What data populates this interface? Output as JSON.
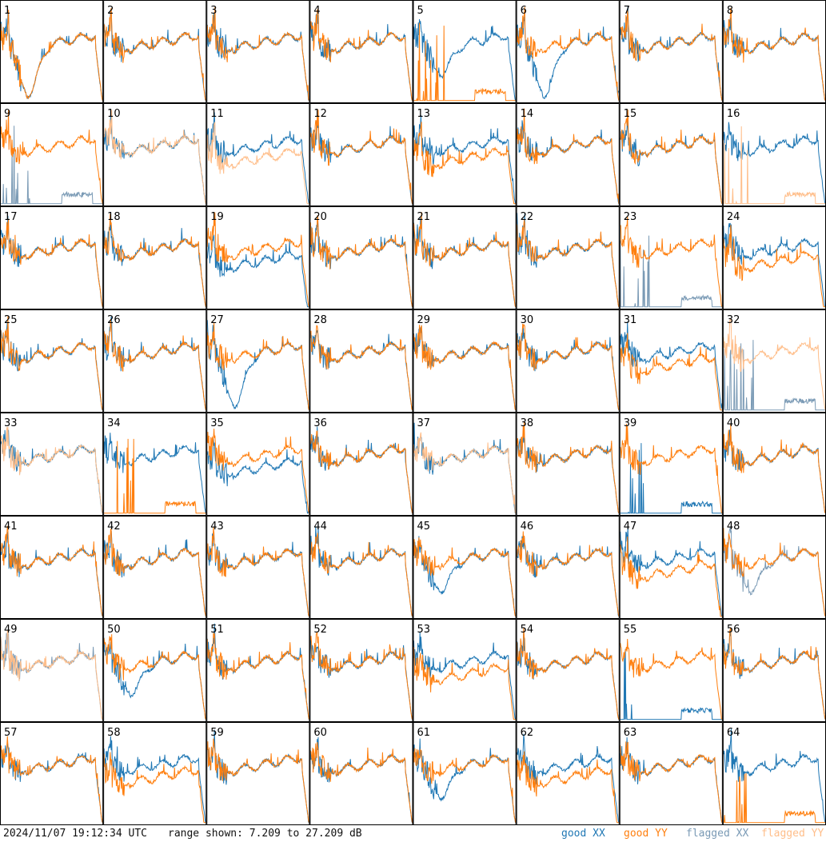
{
  "footer": {
    "timestamp": "2024/11/07 19:12:34 UTC",
    "range_text": "range shown: 7.209 to 27.209 dB",
    "legend": {
      "good_xx": "good XX",
      "good_yy": "good YY",
      "flagged_xx": "flagged XX",
      "flagged_yy": "flagged YY"
    }
  },
  "colors": {
    "good_xx": "#1f77b4",
    "good_yy": "#ff7f0e",
    "flagged_xx": "#7a9ab5",
    "flagged_yy": "#ffbe8a",
    "grid": "#000000"
  },
  "chart_data": {
    "type": "line",
    "grid": {
      "rows": 8,
      "cols": 8
    },
    "ylim": [
      7.209,
      27.209
    ],
    "yunit": "dB",
    "panels": [
      {
        "id": "1",
        "xx": "good",
        "yy": "good",
        "shape": "dip_deep"
      },
      {
        "id": "2",
        "xx": "good",
        "yy": "good",
        "shape": "normal"
      },
      {
        "id": "3",
        "xx": "good",
        "yy": "good",
        "shape": "normal"
      },
      {
        "id": "4",
        "xx": "good",
        "yy": "good",
        "shape": "normal"
      },
      {
        "id": "5",
        "xx": "good",
        "yy": "good",
        "shape": "dip_xx_yy_dead"
      },
      {
        "id": "6",
        "xx": "good",
        "yy": "good",
        "shape": "dip_xx_deep"
      },
      {
        "id": "7",
        "xx": "good",
        "yy": "good",
        "shape": "normal"
      },
      {
        "id": "8",
        "xx": "good",
        "yy": "good",
        "shape": "normal"
      },
      {
        "id": "9",
        "xx": "flagged",
        "yy": "good",
        "shape": "xx_dead"
      },
      {
        "id": "10",
        "xx": "good",
        "yy": "flagged",
        "shape": "normal"
      },
      {
        "id": "11",
        "xx": "good",
        "yy": "flagged",
        "shape": "yy_low"
      },
      {
        "id": "12",
        "xx": "good",
        "yy": "good",
        "shape": "normal"
      },
      {
        "id": "13",
        "xx": "good",
        "yy": "good",
        "shape": "yy_low"
      },
      {
        "id": "14",
        "xx": "good",
        "yy": "good",
        "shape": "normal"
      },
      {
        "id": "15",
        "xx": "good",
        "yy": "good",
        "shape": "normal"
      },
      {
        "id": "16",
        "xx": "good",
        "yy": "flagged",
        "shape": "yy_dead"
      },
      {
        "id": "17",
        "xx": "good",
        "yy": "good",
        "shape": "normal"
      },
      {
        "id": "18",
        "xx": "good",
        "yy": "good",
        "shape": "normal"
      },
      {
        "id": "19",
        "xx": "good",
        "yy": "good",
        "shape": "xx_low"
      },
      {
        "id": "20",
        "xx": "good",
        "yy": "good",
        "shape": "normal"
      },
      {
        "id": "21",
        "xx": "good",
        "yy": "good",
        "shape": "normal"
      },
      {
        "id": "22",
        "xx": "good",
        "yy": "good",
        "shape": "normal"
      },
      {
        "id": "23",
        "xx": "flagged",
        "yy": "good",
        "shape": "xx_dead"
      },
      {
        "id": "24",
        "xx": "good",
        "yy": "good",
        "shape": "yy_low"
      },
      {
        "id": "25",
        "xx": "good",
        "yy": "good",
        "shape": "normal"
      },
      {
        "id": "26",
        "xx": "good",
        "yy": "good",
        "shape": "normal"
      },
      {
        "id": "27",
        "xx": "good",
        "yy": "good",
        "shape": "dip_xx_deep"
      },
      {
        "id": "28",
        "xx": "good",
        "yy": "good",
        "shape": "normal"
      },
      {
        "id": "29",
        "xx": "good",
        "yy": "good",
        "shape": "normal"
      },
      {
        "id": "30",
        "xx": "good",
        "yy": "good",
        "shape": "normal"
      },
      {
        "id": "31",
        "xx": "good",
        "yy": "good",
        "shape": "yy_low"
      },
      {
        "id": "32",
        "xx": "flagged",
        "yy": "flagged",
        "shape": "xx_dead"
      },
      {
        "id": "33",
        "xx": "good",
        "yy": "flagged",
        "shape": "normal"
      },
      {
        "id": "34",
        "xx": "good",
        "yy": "good",
        "shape": "yy_dead"
      },
      {
        "id": "35",
        "xx": "good",
        "yy": "good",
        "shape": "xx_low"
      },
      {
        "id": "36",
        "xx": "good",
        "yy": "good",
        "shape": "normal"
      },
      {
        "id": "37",
        "xx": "good",
        "yy": "flagged",
        "shape": "normal"
      },
      {
        "id": "38",
        "xx": "good",
        "yy": "good",
        "shape": "normal"
      },
      {
        "id": "39",
        "xx": "good",
        "yy": "good",
        "shape": "xx_dead"
      },
      {
        "id": "40",
        "xx": "good",
        "yy": "good",
        "shape": "normal"
      },
      {
        "id": "41",
        "xx": "good",
        "yy": "good",
        "shape": "normal"
      },
      {
        "id": "42",
        "xx": "good",
        "yy": "good",
        "shape": "normal"
      },
      {
        "id": "43",
        "xx": "good",
        "yy": "good",
        "shape": "normal"
      },
      {
        "id": "44",
        "xx": "good",
        "yy": "good",
        "shape": "normal"
      },
      {
        "id": "45",
        "xx": "good",
        "yy": "good",
        "shape": "dip_xx"
      },
      {
        "id": "46",
        "xx": "good",
        "yy": "good",
        "shape": "normal"
      },
      {
        "id": "47",
        "xx": "good",
        "yy": "good",
        "shape": "yy_low"
      },
      {
        "id": "48",
        "xx": "flagged",
        "yy": "good",
        "shape": "dip_xx"
      },
      {
        "id": "49",
        "xx": "flagged",
        "yy": "flagged",
        "shape": "normal"
      },
      {
        "id": "50",
        "xx": "good",
        "yy": "good",
        "shape": "dip_xx"
      },
      {
        "id": "51",
        "xx": "good",
        "yy": "good",
        "shape": "normal"
      },
      {
        "id": "52",
        "xx": "good",
        "yy": "good",
        "shape": "normal"
      },
      {
        "id": "53",
        "xx": "good",
        "yy": "good",
        "shape": "yy_low"
      },
      {
        "id": "54",
        "xx": "good",
        "yy": "good",
        "shape": "normal"
      },
      {
        "id": "55",
        "xx": "good",
        "yy": "good",
        "shape": "xx_dead"
      },
      {
        "id": "56",
        "xx": "good",
        "yy": "good",
        "shape": "normal"
      },
      {
        "id": "57",
        "xx": "good",
        "yy": "good",
        "shape": "normal"
      },
      {
        "id": "58",
        "xx": "good",
        "yy": "good",
        "shape": "yy_low"
      },
      {
        "id": "59",
        "xx": "good",
        "yy": "good",
        "shape": "normal"
      },
      {
        "id": "60",
        "xx": "good",
        "yy": "good",
        "shape": "normal"
      },
      {
        "id": "61",
        "xx": "good",
        "yy": "good",
        "shape": "dip_xx"
      },
      {
        "id": "62",
        "xx": "good",
        "yy": "good",
        "shape": "yy_low"
      },
      {
        "id": "63",
        "xx": "good",
        "yy": "good",
        "shape": "normal"
      },
      {
        "id": "64",
        "xx": "good",
        "yy": "good",
        "shape": "yy_dead"
      }
    ]
  }
}
